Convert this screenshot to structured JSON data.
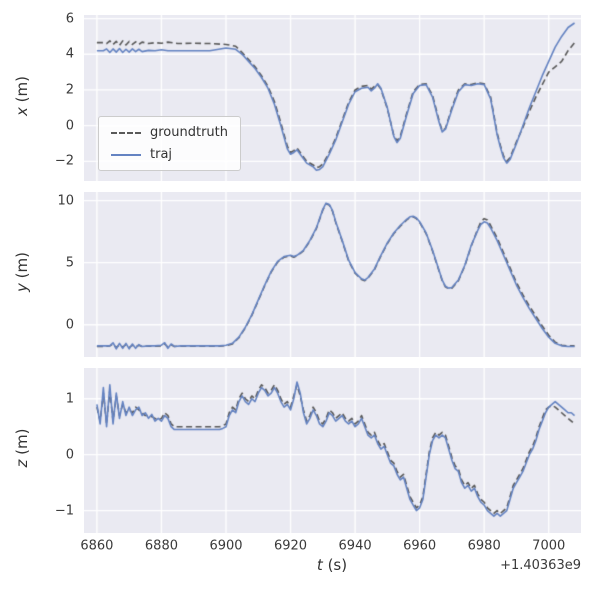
{
  "figure": {
    "bg": "#ffffff",
    "axes_bg": "#eaeaf2",
    "grid_color": "#ffffff",
    "text_color": "#3a3a3a"
  },
  "legend": {
    "items": [
      {
        "label": "groundtruth",
        "color": "#595959",
        "dash": true
      },
      {
        "label": "traj",
        "color": "#6483c2",
        "dash": false
      }
    ]
  },
  "x_axis": {
    "label_var": "t",
    "label_unit": "(s)",
    "offset_text": "+1.40363e9",
    "ticks": [
      6860,
      6880,
      6900,
      6920,
      6940,
      6960,
      6980,
      7000
    ],
    "xlim": [
      6856,
      7010
    ]
  },
  "chart_data": [
    {
      "type": "line",
      "ylabel_var": "x",
      "ylabel_unit": "(m)",
      "ylim": [
        -3.1,
        6.2
      ],
      "yticks": [
        -2,
        0,
        2,
        4,
        6
      ],
      "t": [
        6860,
        6862,
        6863,
        6864,
        6865,
        6866,
        6867,
        6868,
        6869,
        6870,
        6871,
        6872,
        6873,
        6874,
        6876,
        6878,
        6880,
        6882,
        6885,
        6890,
        6895,
        6900,
        6903,
        6905,
        6907,
        6909,
        6911,
        6913,
        6915,
        6917,
        6919,
        6920,
        6921,
        6922,
        6923,
        6925,
        6927,
        6928,
        6929,
        6930,
        6932,
        6934,
        6936,
        6938,
        6940,
        6942,
        6944,
        6945,
        6946,
        6947,
        6948,
        6950,
        6952,
        6953,
        6954,
        6956,
        6958,
        6960,
        6962,
        6964,
        6966,
        6967,
        6968,
        6970,
        6972,
        6974,
        6976,
        6978,
        6980,
        6982,
        6984,
        6985,
        6986,
        6987,
        6988,
        6990,
        6992,
        6994,
        6996,
        6998,
        7000,
        7002,
        7004,
        7006,
        7008
      ],
      "series": [
        {
          "name": "groundtruth",
          "values": [
            4.65,
            4.65,
            4.6,
            4.75,
            4.55,
            4.72,
            4.5,
            4.75,
            4.52,
            4.72,
            4.55,
            4.7,
            4.55,
            4.68,
            4.6,
            4.65,
            4.62,
            4.68,
            4.6,
            4.62,
            4.6,
            4.55,
            4.45,
            4.1,
            3.7,
            3.3,
            2.8,
            2.2,
            1.35,
            0.15,
            -1.15,
            -1.5,
            -1.4,
            -1.25,
            -1.5,
            -2.0,
            -2.2,
            -2.35,
            -2.3,
            -2.15,
            -1.5,
            -0.7,
            0.3,
            1.3,
            2.0,
            2.2,
            2.25,
            2.05,
            2.2,
            2.3,
            2.05,
            0.95,
            -0.55,
            -0.85,
            -0.6,
            0.7,
            1.9,
            2.3,
            2.35,
            1.7,
            0.3,
            -0.3,
            -0.15,
            1.0,
            2.0,
            2.35,
            2.3,
            2.4,
            2.35,
            1.6,
            -0.4,
            -1.1,
            -1.7,
            -2.0,
            -1.8,
            -0.9,
            -0.1,
            0.8,
            1.6,
            2.3,
            3.0,
            3.3,
            3.6,
            4.2,
            4.65
          ]
        },
        {
          "name": "traj",
          "values": [
            4.2,
            4.2,
            4.3,
            4.1,
            4.3,
            4.12,
            4.32,
            4.1,
            4.28,
            4.12,
            4.3,
            4.15,
            4.28,
            4.15,
            4.22,
            4.2,
            4.25,
            4.2,
            4.2,
            4.2,
            4.2,
            4.35,
            4.28,
            4.0,
            3.6,
            3.2,
            2.7,
            2.1,
            1.2,
            0.0,
            -1.3,
            -1.6,
            -1.5,
            -1.35,
            -1.6,
            -2.1,
            -2.3,
            -2.5,
            -2.45,
            -2.3,
            -1.6,
            -0.8,
            0.2,
            1.2,
            1.9,
            2.1,
            2.15,
            1.95,
            2.1,
            2.35,
            2.1,
            1.0,
            -0.6,
            -0.95,
            -0.7,
            0.6,
            1.8,
            2.25,
            2.3,
            1.6,
            0.2,
            -0.35,
            -0.2,
            0.9,
            1.9,
            2.3,
            2.25,
            2.35,
            2.3,
            1.5,
            -0.5,
            -1.2,
            -1.8,
            -2.1,
            -1.9,
            -1.0,
            0.0,
            1.0,
            1.9,
            2.8,
            3.6,
            4.4,
            5.0,
            5.5,
            5.75
          ]
        }
      ]
    },
    {
      "type": "line",
      "ylabel_var": "y",
      "ylabel_unit": "(m)",
      "ylim": [
        -2.6,
        10.7
      ],
      "yticks": [
        0,
        5,
        10
      ],
      "t": [
        6860,
        6862,
        6864,
        6865,
        6866,
        6867,
        6868,
        6869,
        6870,
        6871,
        6872,
        6873,
        6874,
        6876,
        6878,
        6880,
        6881,
        6882,
        6883,
        6884,
        6886,
        6890,
        6894,
        6898,
        6900,
        6902,
        6904,
        6906,
        6908,
        6910,
        6912,
        6914,
        6916,
        6918,
        6920,
        6921,
        6922,
        6924,
        6926,
        6928,
        6930,
        6931,
        6932,
        6933,
        6934,
        6936,
        6938,
        6940,
        6942,
        6943,
        6944,
        6946,
        6948,
        6950,
        6952,
        6954,
        6956,
        6957,
        6958,
        6959,
        6960,
        6962,
        6964,
        6966,
        6967,
        6968,
        6969,
        6970,
        6972,
        6974,
        6976,
        6978,
        6979,
        6980,
        6981,
        6982,
        6984,
        6986,
        6988,
        6990,
        6992,
        6994,
        6996,
        6998,
        7000,
        7002,
        7004,
        7006,
        7008
      ],
      "series": [
        {
          "name": "groundtruth",
          "values": [
            -1.75,
            -1.75,
            -1.7,
            -1.55,
            -1.85,
            -1.6,
            -1.8,
            -1.6,
            -1.85,
            -1.65,
            -1.8,
            -1.65,
            -1.75,
            -1.72,
            -1.72,
            -1.7,
            -1.55,
            -1.8,
            -1.6,
            -1.75,
            -1.72,
            -1.72,
            -1.72,
            -1.72,
            -1.68,
            -1.55,
            -1.05,
            -0.25,
            0.75,
            1.95,
            3.15,
            4.25,
            5.05,
            5.45,
            5.55,
            5.45,
            5.55,
            5.95,
            6.75,
            7.75,
            9.25,
            9.75,
            9.65,
            9.15,
            8.25,
            6.75,
            5.15,
            4.15,
            3.65,
            3.55,
            3.75,
            4.45,
            5.55,
            6.55,
            7.35,
            7.95,
            8.45,
            8.65,
            8.7,
            8.55,
            8.25,
            7.35,
            5.95,
            4.35,
            3.55,
            3.05,
            2.9,
            2.95,
            3.55,
            4.75,
            6.35,
            7.7,
            8.3,
            8.55,
            8.45,
            8.0,
            7.0,
            5.8,
            4.6,
            3.4,
            2.4,
            1.5,
            0.7,
            -0.1,
            -0.85,
            -1.4,
            -1.65,
            -1.7,
            -1.7
          ]
        },
        {
          "name": "traj",
          "values": [
            -1.7,
            -1.7,
            -1.7,
            -1.45,
            -1.95,
            -1.5,
            -1.9,
            -1.5,
            -1.95,
            -1.55,
            -1.9,
            -1.6,
            -1.75,
            -1.7,
            -1.7,
            -1.65,
            -1.45,
            -1.9,
            -1.55,
            -1.75,
            -1.7,
            -1.7,
            -1.7,
            -1.7,
            -1.65,
            -1.5,
            -1.0,
            -0.2,
            0.8,
            2.0,
            3.2,
            4.3,
            5.1,
            5.5,
            5.6,
            5.5,
            5.6,
            6.0,
            6.8,
            7.8,
            9.3,
            9.8,
            9.7,
            9.2,
            8.3,
            6.8,
            5.2,
            4.2,
            3.7,
            3.6,
            3.8,
            4.5,
            5.6,
            6.6,
            7.4,
            8.0,
            8.5,
            8.7,
            8.75,
            8.6,
            8.3,
            7.4,
            6.0,
            4.4,
            3.6,
            3.1,
            2.95,
            3.0,
            3.6,
            4.8,
            6.4,
            7.6,
            8.1,
            8.3,
            8.2,
            7.8,
            6.8,
            5.6,
            4.4,
            3.2,
            2.2,
            1.3,
            0.5,
            -0.3,
            -1.0,
            -1.5,
            -1.7,
            -1.75,
            -1.75
          ]
        }
      ]
    },
    {
      "type": "line",
      "ylabel_var": "z",
      "ylabel_unit": "(m)",
      "ylim": [
        -1.4,
        1.55
      ],
      "yticks": [
        -1,
        0,
        1
      ],
      "t_start": 6860,
      "t_step": 1,
      "series": [
        {
          "name": "groundtruth",
          "values": [
            0.85,
            0.6,
            1.1,
            0.55,
            1.15,
            0.6,
            1.05,
            0.7,
            0.9,
            0.75,
            0.8,
            0.75,
            0.85,
            0.8,
            0.75,
            0.7,
            0.7,
            0.68,
            0.65,
            0.62,
            0.65,
            0.75,
            0.7,
            0.55,
            0.5,
            0.5,
            0.5,
            0.5,
            0.5,
            0.5,
            0.5,
            0.5,
            0.5,
            0.5,
            0.5,
            0.5,
            0.5,
            0.5,
            0.5,
            0.52,
            0.55,
            0.75,
            0.85,
            0.8,
            1.0,
            1.1,
            1.0,
            0.95,
            1.05,
            1.0,
            1.15,
            1.25,
            1.2,
            1.1,
            1.15,
            1.25,
            1.15,
            1.0,
            0.9,
            0.95,
            0.85,
            1.05,
            1.25,
            1.05,
            0.8,
            0.6,
            0.7,
            0.85,
            0.75,
            0.6,
            0.55,
            0.65,
            0.8,
            0.75,
            0.65,
            0.7,
            0.75,
            0.65,
            0.6,
            0.65,
            0.55,
            0.6,
            0.7,
            0.55,
            0.4,
            0.35,
            0.4,
            0.25,
            0.15,
            0.2,
            0.05,
            -0.1,
            -0.15,
            -0.3,
            -0.4,
            -0.35,
            -0.55,
            -0.75,
            -0.85,
            -0.95,
            -0.9,
            -0.75,
            -0.35,
            0.05,
            0.3,
            0.4,
            0.35,
            0.4,
            0.35,
            0.15,
            -0.05,
            -0.2,
            -0.25,
            -0.45,
            -0.55,
            -0.5,
            -0.6,
            -0.55,
            -0.7,
            -0.8,
            -0.85,
            -0.95,
            -1.0,
            -1.05,
            -1.0,
            -1.05,
            -1.0,
            -0.95,
            -0.75,
            -0.55,
            -0.45,
            -0.35,
            -0.25,
            -0.1,
            0.05,
            0.15,
            0.3,
            0.5,
            0.65,
            0.8,
            0.85,
            0.88,
            0.85,
            0.8,
            0.75,
            0.7,
            0.65,
            0.6,
            0.55
          ]
        },
        {
          "name": "traj",
          "values": [
            0.9,
            0.55,
            1.2,
            0.5,
            1.25,
            0.55,
            1.1,
            0.65,
            0.95,
            0.7,
            0.85,
            0.7,
            0.8,
            0.85,
            0.7,
            0.75,
            0.65,
            0.72,
            0.6,
            0.65,
            0.6,
            0.7,
            0.65,
            0.5,
            0.45,
            0.45,
            0.45,
            0.45,
            0.45,
            0.45,
            0.45,
            0.45,
            0.45,
            0.45,
            0.45,
            0.45,
            0.45,
            0.45,
            0.45,
            0.47,
            0.5,
            0.7,
            0.8,
            0.75,
            0.95,
            1.05,
            0.95,
            0.9,
            1.0,
            0.95,
            1.1,
            1.2,
            1.15,
            1.05,
            1.1,
            1.2,
            1.1,
            0.95,
            0.85,
            0.9,
            0.8,
            1.0,
            1.3,
            1.1,
            0.75,
            0.55,
            0.65,
            0.8,
            0.7,
            0.55,
            0.5,
            0.6,
            0.75,
            0.7,
            0.6,
            0.65,
            0.7,
            0.6,
            0.55,
            0.6,
            0.5,
            0.55,
            0.65,
            0.5,
            0.35,
            0.3,
            0.35,
            0.2,
            0.1,
            0.15,
            0.0,
            -0.15,
            -0.2,
            -0.35,
            -0.45,
            -0.4,
            -0.6,
            -0.8,
            -0.9,
            -1.0,
            -0.95,
            -0.8,
            -0.4,
            0.0,
            0.25,
            0.35,
            0.3,
            0.35,
            0.3,
            0.1,
            -0.1,
            -0.25,
            -0.3,
            -0.5,
            -0.6,
            -0.55,
            -0.65,
            -0.6,
            -0.75,
            -0.85,
            -0.9,
            -1.0,
            -1.05,
            -1.1,
            -1.05,
            -1.1,
            -1.05,
            -1.0,
            -0.8,
            -0.6,
            -0.5,
            -0.4,
            -0.3,
            -0.15,
            0.0,
            0.1,
            0.25,
            0.45,
            0.6,
            0.75,
            0.85,
            0.9,
            0.95,
            0.9,
            0.85,
            0.8,
            0.75,
            0.75,
            0.7
          ]
        }
      ]
    }
  ]
}
